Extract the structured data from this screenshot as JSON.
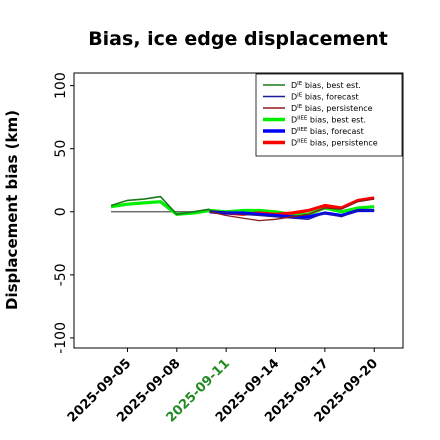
{
  "chart_data": {
    "type": "line",
    "title": "Bias, ice edge displacement",
    "xlabel": "",
    "ylabel": "Displacement bias (km)",
    "ylim": [
      -108,
      110
    ],
    "y_ticks": [
      -100,
      -50,
      0,
      50,
      100
    ],
    "x_ticks": [
      "2025-09-05",
      "2025-09-08",
      "2025-09-11",
      "2025-09-14",
      "2025-09-17",
      "2025-09-20"
    ],
    "x_tick_colors": [
      "#000000",
      "#000000",
      "#228B22",
      "#000000",
      "#000000",
      "#000000"
    ],
    "x_start": "2025-09-01",
    "xlim": [
      "2025-09-01T18:00",
      "2025-09-21T18:00"
    ],
    "grid": false,
    "legend_position": "top-right",
    "series": [
      {
        "name_main": "D",
        "name_sup": "IE",
        "name_rest": " bias, best est.",
        "color": "#1a7a1a",
        "width": 1.6,
        "x": [
          "2025-09-04",
          "2025-09-05",
          "2025-09-06",
          "2025-09-07",
          "2025-09-08",
          "2025-09-09",
          "2025-09-10"
        ],
        "values": [
          5,
          9,
          10,
          12,
          -2,
          0,
          2
        ]
      },
      {
        "name_main": "D",
        "name_sup": "IE",
        "name_rest": " bias, forecast",
        "color": "#1a1a9a",
        "width": 1.3,
        "x": [
          "2025-09-10",
          "2025-09-11",
          "2025-09-12",
          "2025-09-13",
          "2025-09-14",
          "2025-09-15",
          "2025-09-16",
          "2025-09-17",
          "2025-09-18",
          "2025-09-19",
          "2025-09-20"
        ],
        "values": [
          1,
          -1,
          -2,
          -3,
          -4,
          -5,
          -6,
          -1,
          -4,
          1,
          1
        ]
      },
      {
        "name_main": "D",
        "name_sup": "IE",
        "name_rest": " bias, persistence",
        "color": "#8b1a1a",
        "width": 1.3,
        "x": [
          "2025-09-10",
          "2025-09-11",
          "2025-09-12",
          "2025-09-13",
          "2025-09-14",
          "2025-09-15",
          "2025-09-16",
          "2025-09-17",
          "2025-09-18",
          "2025-09-19",
          "2025-09-20"
        ],
        "values": [
          0,
          -3,
          -5,
          -7,
          -6,
          -4,
          -2,
          3,
          2,
          8,
          10
        ]
      },
      {
        "name_main": "D",
        "name_sup": "IIEE",
        "name_rest": " bias, best est.",
        "color": "#00ee00",
        "width": 3.2,
        "x": [
          "2025-09-04",
          "2025-09-05",
          "2025-09-06",
          "2025-09-07",
          "2025-09-08",
          "2025-09-09",
          "2025-09-10",
          "2025-09-11",
          "2025-09-12",
          "2025-09-13",
          "2025-09-14",
          "2025-09-15",
          "2025-09-16",
          "2025-09-17",
          "2025-09-18",
          "2025-09-19",
          "2025-09-20"
        ],
        "values": [
          4,
          6,
          7,
          8,
          -2,
          -1,
          1,
          0,
          1,
          1,
          0,
          -2,
          -2,
          3,
          0,
          3,
          4
        ]
      },
      {
        "name_main": "D",
        "name_sup": "IIEE",
        "name_rest": " bias, forecast",
        "color": "#0000ff",
        "width": 3.2,
        "x": [
          "2025-09-10",
          "2025-09-11",
          "2025-09-12",
          "2025-09-13",
          "2025-09-14",
          "2025-09-15",
          "2025-09-16",
          "2025-09-17",
          "2025-09-18",
          "2025-09-19",
          "2025-09-20"
        ],
        "values": [
          0,
          -1,
          -1,
          -2,
          -3,
          -4,
          -4,
          -1,
          -3,
          1,
          1
        ]
      },
      {
        "name_main": "D",
        "name_sup": "IIEE",
        "name_rest": " bias, persistence",
        "color": "#ff0000",
        "width": 3.2,
        "x": [
          "2025-09-10",
          "2025-09-11",
          "2025-09-12",
          "2025-09-13",
          "2025-09-14",
          "2025-09-15",
          "2025-09-16",
          "2025-09-17",
          "2025-09-18",
          "2025-09-19",
          "2025-09-20"
        ],
        "values": [
          0,
          -1,
          -2,
          -1,
          -2,
          -1,
          1,
          5,
          3,
          9,
          11
        ]
      }
    ],
    "reference_line": {
      "x": [
        "2025-09-04",
        "2025-09-10"
      ],
      "value": 0,
      "color": "#555555"
    }
  }
}
